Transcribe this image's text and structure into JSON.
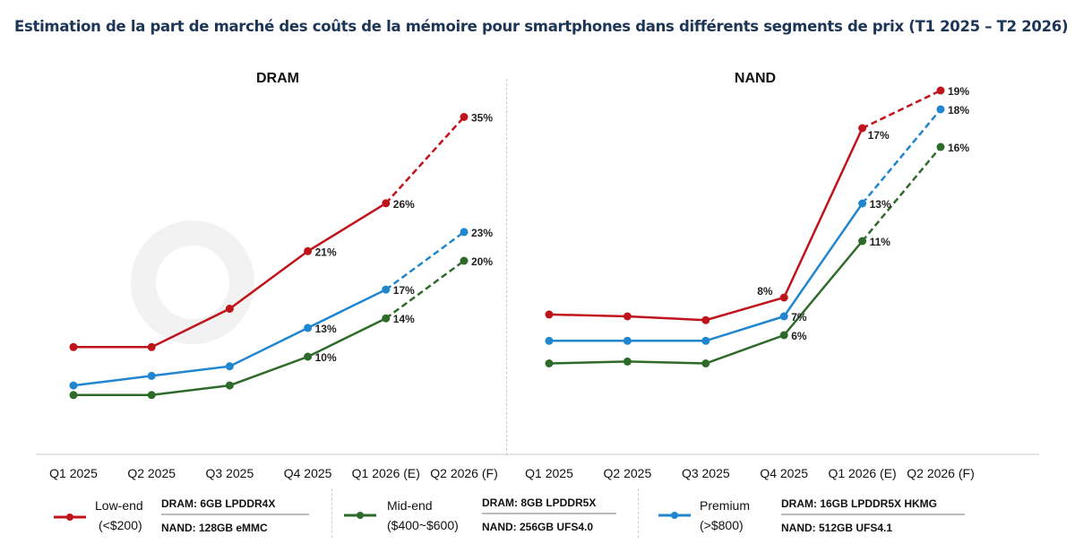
{
  "title": "Estimation de la part de marché des coûts de la mémoire pour smartphones dans différents segments de prix (T1 2025 – T2 2026)",
  "watermark": "Counterpoint",
  "colors": {
    "low": "#c0141c",
    "mid": "#2e6b2a",
    "premium": "#1f86cf"
  },
  "chart_data": [
    {
      "type": "line",
      "title": "DRAM",
      "categories": [
        "Q1 2025",
        "Q2 2025",
        "Q3 2025",
        "Q4 2025",
        "Q1 2026 (E)",
        "Q2 2026 (F)"
      ],
      "note": "Q1 2026 to Q2 2026 segment dashed (forecast)",
      "series": [
        {
          "name": "Low-end (<$200)",
          "values": [
            11,
            11,
            15,
            21,
            26,
            35
          ],
          "labels": [
            "",
            "",
            "",
            "21%",
            "26%",
            "35%"
          ]
        },
        {
          "name": "Mid-end ($400~$600)",
          "values": [
            6,
            6,
            7,
            10,
            14,
            20
          ],
          "labels": [
            "",
            "",
            "",
            "10%",
            "14%",
            "20%"
          ]
        },
        {
          "name": "Premium (>$800)",
          "values": [
            7,
            8,
            9,
            13,
            17,
            23
          ],
          "labels": [
            "",
            "",
            "",
            "13%",
            "17%",
            "23%"
          ]
        }
      ],
      "ylim": [
        0,
        36
      ],
      "grid": false
    },
    {
      "type": "line",
      "title": "NAND",
      "categories": [
        "Q1 2025",
        "Q2 2025",
        "Q3 2025",
        "Q4 2025",
        "Q1 2026 (E)",
        "Q2 2026 (F)"
      ],
      "series": [
        {
          "name": "Low-end (<$200)",
          "values": [
            7.1,
            7,
            6.8,
            8,
            17,
            19
          ],
          "labels": [
            "",
            "",
            "",
            "8%",
            "17%",
            "19%"
          ]
        },
        {
          "name": "Mid-end ($400~$600)",
          "values": [
            4.5,
            4.6,
            4.5,
            6,
            11,
            16
          ],
          "labels": [
            "",
            "",
            "",
            "6%",
            "11%",
            "16%"
          ]
        },
        {
          "name": "Premium (>$800)",
          "values": [
            5.7,
            5.7,
            5.7,
            7,
            13,
            18
          ],
          "labels": [
            "",
            "",
            "",
            "7%",
            "13%",
            "18%"
          ]
        }
      ],
      "ylim": [
        0,
        20
      ],
      "grid": false
    }
  ],
  "legend": [
    {
      "name1": "Low-end",
      "name2": "(<$200)",
      "dram": "DRAM: 6GB LPDDR4X",
      "nand": "NAND: 128GB eMMC"
    },
    {
      "name1": "Mid-end",
      "name2": "($400~$600)",
      "dram": "DRAM: 8GB LPDDR5X",
      "nand": "NAND: 256GB UFS4.0"
    },
    {
      "name1": "Premium",
      "name2": "(>$800)",
      "dram": "DRAM: 16GB LPDDR5X HKMG",
      "nand": "NAND: 512GB UFS4.1"
    }
  ]
}
